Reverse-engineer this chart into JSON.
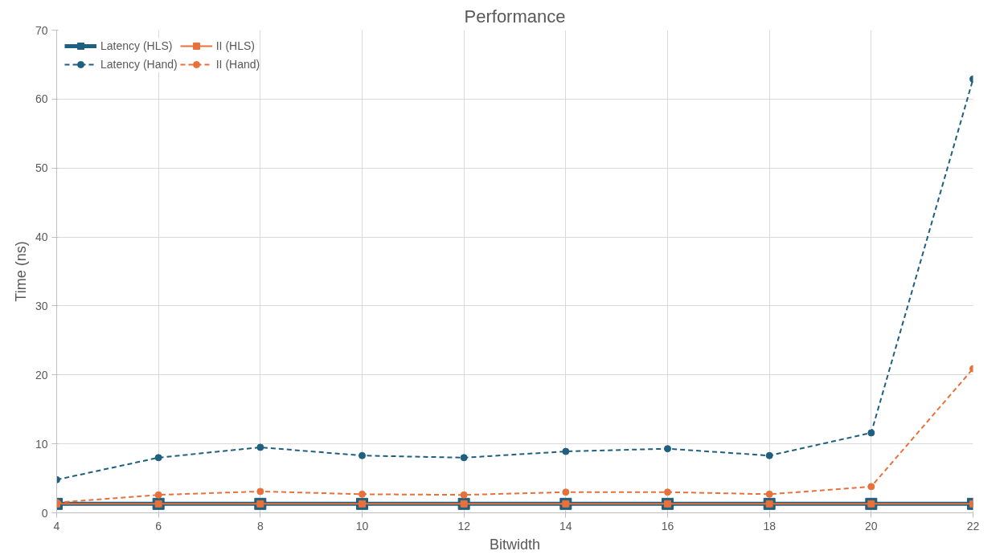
{
  "chart_data": {
    "type": "line",
    "title": "Performance",
    "xlabel": "Bitwidth",
    "ylabel": "Time (ns)",
    "x": [
      4,
      6,
      8,
      10,
      12,
      14,
      16,
      18,
      20,
      22
    ],
    "xlim": [
      4,
      22
    ],
    "xticks": [
      4,
      6,
      8,
      10,
      12,
      14,
      16,
      18,
      20,
      22
    ],
    "ylim": [
      0,
      70
    ],
    "yticks": [
      0,
      10,
      20,
      30,
      40,
      50,
      60,
      70
    ],
    "grid": true,
    "legend": "top left",
    "series": [
      {
        "name": "Latency (HLS)",
        "color": "#1f5f7f",
        "marker": "square",
        "line_style": "solid",
        "values": [
          1.3,
          1.3,
          1.3,
          1.3,
          1.3,
          1.3,
          1.3,
          1.3,
          1.3,
          1.3
        ]
      },
      {
        "name": "II (HLS)",
        "color": "#e8703a",
        "marker": "square",
        "line_style": "solid",
        "values": [
          1.3,
          1.3,
          1.3,
          1.3,
          1.3,
          1.3,
          1.3,
          1.3,
          1.3,
          1.3
        ]
      },
      {
        "name": "Latency (Hand)",
        "color": "#1f5f7f",
        "marker": "circle",
        "line_style": "dashed",
        "values": [
          4.8,
          8.0,
          9.5,
          8.3,
          8.0,
          8.9,
          9.3,
          8.3,
          11.6,
          62.9
        ]
      },
      {
        "name": "II (Hand)",
        "color": "#e8703a",
        "marker": "circle",
        "line_style": "dashed",
        "values": [
          1.5,
          2.6,
          3.1,
          2.7,
          2.6,
          3.0,
          3.0,
          2.7,
          3.8,
          20.9
        ]
      }
    ]
  }
}
